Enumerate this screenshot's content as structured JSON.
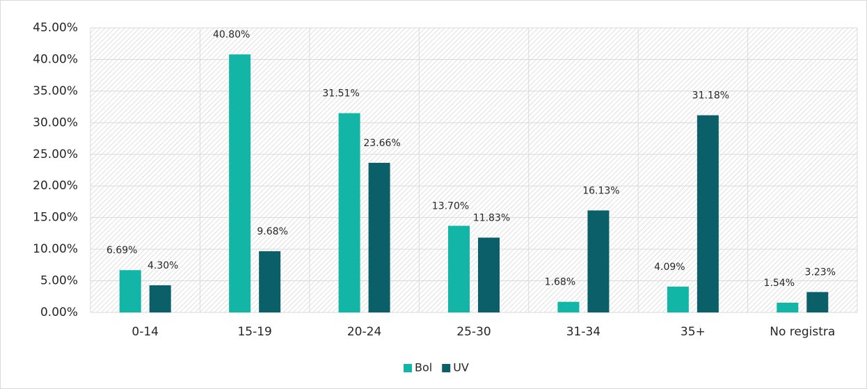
{
  "chart_data": {
    "type": "bar",
    "categories": [
      "0-14",
      "15-19",
      "20-24",
      "25-30",
      "31-34",
      "35+",
      "No registra"
    ],
    "series": [
      {
        "name": "Bol",
        "color": "#12b5a6",
        "values": [
          6.69,
          40.8,
          31.51,
          13.7,
          1.68,
          4.09,
          1.54
        ],
        "value_labels": [
          "6.69%",
          "40.80%",
          "31.51%",
          "13.70%",
          "1.68%",
          "4.09%",
          "1.54%"
        ]
      },
      {
        "name": "UV",
        "color": "#0b5f69",
        "values": [
          4.3,
          9.68,
          23.66,
          11.83,
          16.13,
          31.18,
          3.23
        ],
        "value_labels": [
          "4.30%",
          "9.68%",
          "23.66%",
          "11.83%",
          "16.13%",
          "31.18%",
          "3.23%"
        ]
      }
    ],
    "ylim": [
      0,
      45
    ],
    "yticks": [
      {
        "value": 0,
        "label": "0.00%"
      },
      {
        "value": 5,
        "label": "5.00%"
      },
      {
        "value": 10,
        "label": "10.00%"
      },
      {
        "value": 15,
        "label": "15.00%"
      },
      {
        "value": 20,
        "label": "20.00%"
      },
      {
        "value": 25,
        "label": "25.00%"
      },
      {
        "value": 30,
        "label": "30.00%"
      },
      {
        "value": 35,
        "label": "35.00%"
      },
      {
        "value": 40,
        "label": "40.00%"
      },
      {
        "value": 45,
        "label": "45.00%"
      }
    ],
    "grid": true,
    "legend": "bottom"
  }
}
